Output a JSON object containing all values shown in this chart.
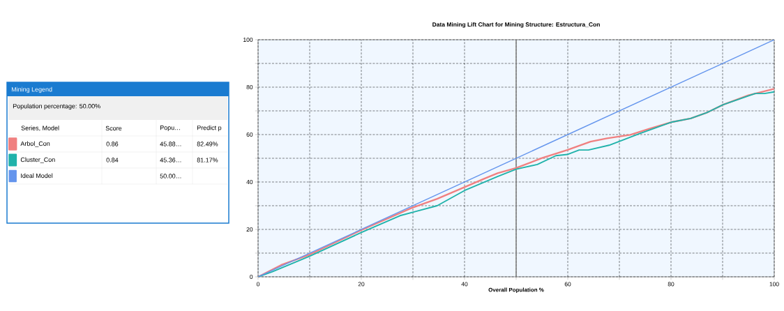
{
  "chart_data": {
    "type": "line",
    "title": "Data Mining Lift Chart for Mining Structure: Estructura_Con",
    "xlabel": "Overall Population %",
    "legend_title": "Series, Model",
    "annotations": [
      "Mining Legend",
      "Population percentage: 50.00%",
      "Score",
      "Popu…",
      "Predict p",
      "0.86",
      "45.88…",
      "82.49%",
      "0.84",
      "45.36…",
      "81.17%",
      "50.00…"
    ],
    "xlim": [
      0,
      100
    ],
    "ylim": [
      0,
      100
    ],
    "xticks": [
      0,
      {
        "value": 10,
        "label": null
      },
      20,
      {
        "value": 30,
        "label": null
      },
      40,
      {
        "value": 50,
        "label": null
      },
      60,
      {
        "value": 70,
        "label": null
      },
      80,
      {
        "value": 90,
        "label": null
      },
      100
    ],
    "yticks": [
      0,
      {
        "value": 10,
        "label": null
      },
      20,
      {
        "value": 30,
        "label": null
      },
      40,
      {
        "value": 50,
        "label": null
      },
      60,
      {
        "value": 70,
        "label": null
      },
      80,
      {
        "value": 90,
        "label": null
      },
      100
    ],
    "grid": true,
    "legend": "left",
    "line_style": "solid",
    "ref_lines": [
      {
        "axis": "x",
        "value": 50,
        "color": "#808080"
      }
    ],
    "series": [
      {
        "name": "Arbol_Con",
        "color": "#f08080",
        "x": [
          0,
          4.5,
          10,
          20,
          29.7,
          34.7,
          40,
          43.7,
          46.4,
          50,
          55,
          59.9,
          64.4,
          67.6,
          72.1,
          75.7,
          80.2,
          83.8,
          86.9,
          90.1,
          95,
          100
        ],
        "values": [
          0,
          5,
          9.4,
          19.7,
          29,
          32.9,
          37.8,
          41.3,
          43.7,
          45.9,
          50.1,
          53.5,
          57,
          58.4,
          59.9,
          62.4,
          65.3,
          66.8,
          69.2,
          72.6,
          76.6,
          79.3
        ]
      },
      {
        "name": "Cluster_Con",
        "color": "#20b2aa",
        "x": [
          0,
          2.7,
          10,
          20,
          27.5,
          30.6,
          34.7,
          40,
          46.4,
          50,
          54.1,
          57.7,
          59.9,
          62.2,
          64,
          68,
          70.3,
          73.9,
          80.2,
          83.8,
          86.9,
          90.1,
          96.3,
          98.1,
          100
        ],
        "values": [
          0,
          2.1,
          8.7,
          18.7,
          25.8,
          27.6,
          30,
          36.4,
          42.3,
          45.4,
          47.4,
          51.1,
          51.6,
          53.5,
          53.5,
          55.5,
          57.4,
          60.4,
          65.3,
          66.8,
          69.2,
          72.6,
          77.3,
          77.3,
          78
        ]
      },
      {
        "name": "Ideal Model",
        "color": "#6495ed",
        "x": [
          0,
          100
        ],
        "values": [
          0,
          100
        ]
      }
    ]
  }
}
